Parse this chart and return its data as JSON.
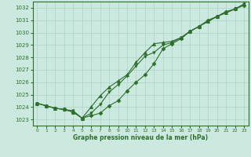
{
  "background_color": "#cce9e0",
  "grid_color": "#aad4c8",
  "line_color": "#2d6e2d",
  "marker_color": "#2d6e2d",
  "text_color": "#2d6e2d",
  "xlabel": "Graphe pression niveau de la mer (hPa)",
  "xlim": [
    -0.5,
    23.5
  ],
  "ylim": [
    1022.5,
    1032.5
  ],
  "yticks": [
    1023,
    1024,
    1025,
    1026,
    1027,
    1028,
    1029,
    1030,
    1031,
    1032
  ],
  "xticks": [
    0,
    1,
    2,
    3,
    4,
    5,
    6,
    7,
    8,
    9,
    10,
    11,
    12,
    13,
    14,
    15,
    16,
    17,
    18,
    19,
    20,
    21,
    22,
    23
  ],
  "series": [
    {
      "x": [
        0,
        1,
        2,
        3,
        4,
        5,
        6,
        7,
        8,
        9,
        10,
        11,
        12,
        13,
        14,
        15,
        16,
        17,
        18,
        19,
        20,
        21,
        22,
        23
      ],
      "y": [
        1024.3,
        1024.1,
        1023.9,
        1023.8,
        1023.6,
        1023.1,
        1023.3,
        1023.5,
        1024.1,
        1024.5,
        1025.3,
        1026.0,
        1026.6,
        1027.5,
        1028.7,
        1029.1,
        1029.5,
        1030.1,
        1030.5,
        1031.0,
        1031.3,
        1031.7,
        1031.9,
        1032.2
      ],
      "marker": "D",
      "markersize": 2.5
    },
    {
      "x": [
        0,
        1,
        2,
        3,
        4,
        5,
        6,
        7,
        8,
        9,
        10,
        11,
        12,
        13,
        14,
        15,
        16,
        17,
        18,
        19,
        20,
        21,
        22,
        23
      ],
      "y": [
        1024.3,
        1024.1,
        1023.9,
        1023.8,
        1023.6,
        1023.1,
        1024.0,
        1024.9,
        1025.6,
        1026.1,
        1026.6,
        1027.6,
        1028.4,
        1029.1,
        1029.2,
        1029.3,
        1029.6,
        1030.1,
        1030.5,
        1030.9,
        1031.3,
        1031.6,
        1031.9,
        1032.3
      ],
      "marker": "^",
      "markersize": 3.0
    },
    {
      "x": [
        0,
        1,
        2,
        3,
        4,
        5,
        6,
        7,
        8,
        9,
        10,
        11,
        12,
        13,
        14,
        15,
        16,
        17,
        18,
        19,
        20,
        21,
        22,
        23
      ],
      "y": [
        1024.3,
        1024.1,
        1023.9,
        1023.8,
        1023.7,
        1023.1,
        1023.5,
        1024.2,
        1025.2,
        1025.8,
        1026.5,
        1027.3,
        1028.1,
        1028.4,
        1029.0,
        1029.2,
        1029.6,
        1030.1,
        1030.5,
        1030.9,
        1031.3,
        1031.6,
        1031.9,
        1032.3
      ],
      "marker": "v",
      "markersize": 2.5
    }
  ]
}
